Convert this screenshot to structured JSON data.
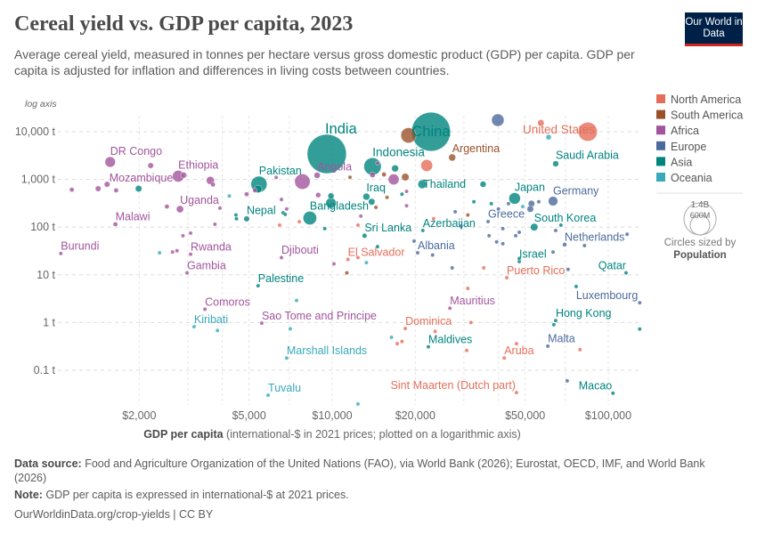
{
  "title": "Cereal yield vs. GDP per capita, 2023",
  "subtitle": "Average cereal yield, measured in tonnes per hectare versus gross domestic product (GDP) per capita. GDP per capita is adjusted for inflation and differences in living costs between countries.",
  "logo": "Our World in Data",
  "footer": {
    "source_label": "Data source:",
    "source_text": " Food and Agriculture Organization of the United Nations (FAO), via World Bank (2026); Eurostat, OECD, IMF, and World Bank (2026)",
    "note_label": "Note:",
    "note_text": " GDP per capita is expressed in international-$ at 2021 prices.",
    "url": "OurWorldinData.org/crop-yields | CC BY"
  },
  "chart_data": {
    "type": "scatter",
    "x_scale": "log",
    "y_scale": "log",
    "xlim": [
      1000,
      130000
    ],
    "ylim": [
      0.019,
      22000
    ],
    "y_axis_note": "log axis",
    "xlabel_bold": "GDP per capita",
    "xlabel_rest": " (international-$ in 2021 prices; plotted on a logarithmic axis)",
    "x_ticks": [
      {
        "v": 2000,
        "label": "$2,000"
      },
      {
        "v": 5000,
        "label": "$5,000"
      },
      {
        "v": 10000,
        "label": "$10,000"
      },
      {
        "v": 20000,
        "label": "$20,000"
      },
      {
        "v": 50000,
        "label": "$50,000"
      },
      {
        "v": 100000,
        "label": "$100,000"
      }
    ],
    "y_ticks": [
      {
        "v": 10000,
        "label": "10,000 t"
      },
      {
        "v": 1000,
        "label": "1,000 t"
      },
      {
        "v": 100,
        "label": "100 t"
      },
      {
        "v": 10,
        "label": "10 t"
      },
      {
        "v": 1,
        "label": "1 t"
      },
      {
        "v": 0.1,
        "label": "0.1 t"
      }
    ],
    "grid": true,
    "legend_placement": "right",
    "legend": [
      {
        "name": "North America",
        "color": "#E56E5A"
      },
      {
        "name": "South America",
        "color": "#9A5129"
      },
      {
        "name": "Africa",
        "color": "#A2559C"
      },
      {
        "name": "Europe",
        "color": "#4C6A9C"
      },
      {
        "name": "Asia",
        "color": "#00847E"
      },
      {
        "name": "Oceania",
        "color": "#38AABA"
      }
    ],
    "size_legend": {
      "title": "Circles sized by",
      "variable": "Population",
      "large": "1.4B",
      "small": "600M"
    },
    "points": [
      {
        "label": "India",
        "gdp": 9560,
        "y": 3420,
        "region": "Asia",
        "pop": 1430
      },
      {
        "label": "China",
        "gdp": 22800,
        "y": 10000,
        "region": "Asia",
        "pop": 1410
      },
      {
        "label": "United States",
        "gdp": 84300,
        "y": 10000,
        "region": "North America",
        "pop": 335
      },
      {
        "label": "Indonesia",
        "gdp": 14000,
        "y": 1870,
        "region": "Asia",
        "pop": 280
      },
      {
        "label": "Pakistan",
        "gdp": 5430,
        "y": 793,
        "region": "Asia",
        "pop": 240
      },
      {
        "label": "Bangladesh",
        "gdp": 8300,
        "y": 155,
        "region": "Asia",
        "pop": 172
      },
      {
        "label": "Argentina",
        "gdp": 27200,
        "y": 2880,
        "region": "South America",
        "pop": 46
      },
      {
        "label": "Saudi Arabia",
        "gdp": 64500,
        "y": 2130,
        "region": "Asia",
        "pop": 33
      },
      {
        "label": "Japan",
        "gdp": 45800,
        "y": 400,
        "region": "Asia",
        "pop": 124
      },
      {
        "label": "Germany",
        "gdp": 63100,
        "y": 351,
        "region": "Europe",
        "pop": 84
      },
      {
        "label": "Thailand",
        "gdp": 21200,
        "y": 793,
        "region": "Asia",
        "pop": 71
      },
      {
        "label": "DR Congo",
        "gdp": 1570,
        "y": 2320,
        "region": "Africa",
        "pop": 102
      },
      {
        "label": "Ethiopia",
        "gdp": 2770,
        "y": 1170,
        "region": "Africa",
        "pop": 126
      },
      {
        "label": "Mozambique",
        "gdp": 2900,
        "y": 1230,
        "region": "Africa",
        "pop": 33
      },
      {
        "label": "Angola",
        "gdp": 8820,
        "y": 1220,
        "region": "Africa",
        "pop": 36
      },
      {
        "label": "Uganda",
        "gdp": 2810,
        "y": 238,
        "region": "Africa",
        "pop": 48
      },
      {
        "label": "Malawi",
        "gdp": 1640,
        "y": 115,
        "region": "Africa",
        "pop": 20
      },
      {
        "label": "Burundi",
        "gdp": 1040,
        "y": 28,
        "region": "Africa",
        "pop": 13
      },
      {
        "label": "Rwanda",
        "gdp": 3070,
        "y": 27,
        "region": "Africa",
        "pop": 14
      },
      {
        "label": "Gambia",
        "gdp": 2980,
        "y": 11,
        "region": "Africa",
        "pop": 3
      },
      {
        "label": "Nepal",
        "gdp": 4900,
        "y": 149,
        "region": "Asia",
        "pop": 30
      },
      {
        "label": "Djibouti",
        "gdp": 6550,
        "y": 23,
        "region": "Africa",
        "pop": 1
      },
      {
        "label": "Palestine",
        "gdp": 5390,
        "y": 5.9,
        "region": "Asia",
        "pop": 5
      },
      {
        "label": "Comoros",
        "gdp": 3460,
        "y": 1.9,
        "region": "Africa",
        "pop": 1
      },
      {
        "label": "Kiribati",
        "gdp": 3160,
        "y": 0.82,
        "region": "Oceania",
        "pop": 0.1
      },
      {
        "label": "Sao Tome and Principe",
        "gdp": 5560,
        "y": 0.97,
        "region": "Africa",
        "pop": 0.2
      },
      {
        "label": "Marshall Islands",
        "gdp": 6840,
        "y": 0.18,
        "region": "Oceania",
        "pop": 0.04
      },
      {
        "label": "Tuvalu",
        "gdp": 5860,
        "y": 0.03,
        "region": "Oceania",
        "pop": 0.01
      },
      {
        "label": "El Salvador",
        "gdp": 11400,
        "y": 21,
        "region": "North America",
        "pop": 6
      },
      {
        "label": "Iraq",
        "gdp": 13300,
        "y": 435,
        "region": "Asia",
        "pop": 45
      },
      {
        "label": "Sri Lanka",
        "gdp": 13100,
        "y": 66,
        "region": "Asia",
        "pop": 22
      },
      {
        "label": "Azerbaijan",
        "gdp": 21300,
        "y": 85,
        "region": "Asia",
        "pop": 10
      },
      {
        "label": "Albania",
        "gdp": 20400,
        "y": 29,
        "region": "Europe",
        "pop": 3
      },
      {
        "label": "Greece",
        "gdp": 36700,
        "y": 131,
        "region": "Europe",
        "pop": 10
      },
      {
        "label": "South Korea",
        "gdp": 53900,
        "y": 100,
        "region": "Asia",
        "pop": 52
      },
      {
        "label": "Netherlands",
        "gdp": 69500,
        "y": 43,
        "region": "Europe",
        "pop": 18
      },
      {
        "label": "Israel",
        "gdp": 47600,
        "y": 19,
        "region": "Asia",
        "pop": 10
      },
      {
        "label": "Puerto Rico",
        "gdp": 42900,
        "y": 8.7,
        "region": "North America",
        "pop": 3
      },
      {
        "label": "Qatar",
        "gdp": 116000,
        "y": 11,
        "region": "Asia",
        "pop": 3
      },
      {
        "label": "Luxembourg",
        "gdp": 130000,
        "y": 2.6,
        "region": "Europe",
        "pop": 0.7
      },
      {
        "label": "Hong Kong",
        "gdp": 64500,
        "y": 1.1,
        "region": "Asia",
        "pop": 7
      },
      {
        "label": "Mauritius",
        "gdp": 26700,
        "y": 2.0,
        "region": "Africa",
        "pop": 1.3
      },
      {
        "label": "Dominica",
        "gdp": 18400,
        "y": 0.75,
        "region": "North America",
        "pop": 0.07
      },
      {
        "label": "Maldives",
        "gdp": 22300,
        "y": 0.31,
        "region": "Asia",
        "pop": 0.5
      },
      {
        "label": "Malta",
        "gdp": 60400,
        "y": 0.32,
        "region": "Europe",
        "pop": 0.5
      },
      {
        "label": "Aruba",
        "gdp": 42000,
        "y": 0.18,
        "region": "North America",
        "pop": 0.1
      },
      {
        "label": "Sint Maarten (Dutch part)",
        "gdp": 46500,
        "y": 0.034,
        "region": "North America",
        "pop": 0.04
      },
      {
        "label": "Macao",
        "gdp": 104000,
        "y": 0.033,
        "region": "Asia",
        "pop": 0.7
      },
      {
        "gdp": 18900,
        "y": 8400,
        "region": "South America",
        "pop": 215
      },
      {
        "gdp": 39800,
        "y": 17500,
        "region": "Europe",
        "pop": 145
      },
      {
        "gdp": 57000,
        "y": 15300,
        "region": "North America",
        "pop": 40
      },
      {
        "gdp": 22000,
        "y": 1960,
        "region": "North America",
        "pop": 130
      },
      {
        "gdp": 60800,
        "y": 7700,
        "region": "Oceania",
        "pop": 27
      },
      {
        "gdp": 7800,
        "y": 900,
        "region": "Africa",
        "pop": 220
      },
      {
        "gdp": 16700,
        "y": 1000,
        "region": "Africa",
        "pop": 110
      },
      {
        "gdp": 1140,
        "y": 610,
        "region": "Africa",
        "pop": 20
      },
      {
        "gdp": 1420,
        "y": 640,
        "region": "Africa",
        "pop": 30
      },
      {
        "gdp": 1530,
        "y": 790,
        "region": "Africa",
        "pop": 30
      },
      {
        "gdp": 1650,
        "y": 590,
        "region": "Africa",
        "pop": 20
      },
      {
        "gdp": 2200,
        "y": 1950,
        "region": "Africa",
        "pop": 30
      },
      {
        "gdp": 3620,
        "y": 950,
        "region": "Africa",
        "pop": 60
      },
      {
        "gdp": 3700,
        "y": 780,
        "region": "Africa",
        "pop": 20
      },
      {
        "gdp": 2520,
        "y": 270,
        "region": "Africa",
        "pop": 20
      },
      {
        "gdp": 3920,
        "y": 250,
        "region": "Africa",
        "pop": 12
      },
      {
        "gdp": 3760,
        "y": 115,
        "region": "Africa",
        "pop": 8
      },
      {
        "gdp": 2880,
        "y": 66,
        "region": "Africa",
        "pop": 8
      },
      {
        "gdp": 3070,
        "y": 75,
        "region": "Africa",
        "pop": 8
      },
      {
        "gdp": 2640,
        "y": 30,
        "region": "Africa",
        "pop": 6
      },
      {
        "gdp": 2740,
        "y": 32,
        "region": "Africa",
        "pop": 6
      },
      {
        "gdp": 4900,
        "y": 490,
        "region": "Africa",
        "pop": 20
      },
      {
        "gdp": 5250,
        "y": 590,
        "region": "Africa",
        "pop": 20
      },
      {
        "gdp": 6270,
        "y": 1100,
        "region": "Africa",
        "pop": 6
      },
      {
        "gdp": 6550,
        "y": 380,
        "region": "Africa",
        "pop": 15
      },
      {
        "gdp": 6840,
        "y": 240,
        "region": "Africa",
        "pop": 12
      },
      {
        "gdp": 8900,
        "y": 470,
        "region": "Africa",
        "pop": 25
      },
      {
        "gdp": 10150,
        "y": 17,
        "region": "Africa",
        "pop": 3
      },
      {
        "gdp": 12700,
        "y": 170,
        "region": "Africa",
        "pop": 8
      },
      {
        "gdp": 14000,
        "y": 1250,
        "region": "Africa",
        "pop": 30
      },
      {
        "gdp": 14600,
        "y": 2200,
        "region": "Africa",
        "pop": 10
      },
      {
        "gdp": 18600,
        "y": 560,
        "region": "Africa",
        "pop": 4
      },
      {
        "gdp": 18600,
        "y": 280,
        "region": "Africa",
        "pop": 4
      },
      {
        "gdp": 1990,
        "y": 640,
        "region": "Asia",
        "pop": 40
      },
      {
        "gdp": 4480,
        "y": 180,
        "region": "Asia",
        "pop": 8
      },
      {
        "gdp": 4500,
        "y": 150,
        "region": "Asia",
        "pop": 8
      },
      {
        "gdp": 5390,
        "y": 630,
        "region": "Asia",
        "pop": 55
      },
      {
        "gdp": 6640,
        "y": 200,
        "region": "Asia",
        "pop": 10
      },
      {
        "gdp": 6760,
        "y": 185,
        "region": "Asia",
        "pop": 10
      },
      {
        "gdp": 9400,
        "y": 93,
        "region": "Asia",
        "pop": 5
      },
      {
        "gdp": 9900,
        "y": 450,
        "region": "Asia",
        "pop": 35
      },
      {
        "gdp": 9900,
        "y": 320,
        "region": "Asia",
        "pop": 100
      },
      {
        "gdp": 14600,
        "y": 39,
        "region": "Asia",
        "pop": 5
      },
      {
        "gdp": 13900,
        "y": 340,
        "region": "Asia",
        "pop": 40
      },
      {
        "gdp": 16900,
        "y": 1700,
        "region": "Asia",
        "pop": 45
      },
      {
        "gdp": 17900,
        "y": 490,
        "region": "Asia",
        "pop": 5
      },
      {
        "gdp": 35200,
        "y": 790,
        "region": "Asia",
        "pop": 35
      },
      {
        "gdp": 32600,
        "y": 340,
        "region": "Asia",
        "pop": 10
      },
      {
        "gdp": 37700,
        "y": 310,
        "region": "Asia",
        "pop": 5
      },
      {
        "gdp": 67400,
        "y": 110,
        "region": "Asia",
        "pop": 5
      },
      {
        "gdp": 47600,
        "y": 22,
        "region": "Asia",
        "pop": 5
      },
      {
        "gdp": 63500,
        "y": 0.9,
        "region": "Asia",
        "pop": 5
      },
      {
        "gdp": 130000,
        "y": 0.73,
        "region": "Asia",
        "pop": 1
      },
      {
        "gdp": 76500,
        "y": 5.7,
        "region": "Asia",
        "pop": 3
      },
      {
        "gdp": 40000,
        "y": 240,
        "region": "Europe",
        "pop": 10
      },
      {
        "gdp": 43500,
        "y": 310,
        "region": "Europe",
        "pop": 10
      },
      {
        "gdp": 52700,
        "y": 310,
        "region": "Europe",
        "pop": 40
      },
      {
        "gdp": 52200,
        "y": 240,
        "region": "Europe",
        "pop": 40
      },
      {
        "gdp": 56000,
        "y": 340,
        "region": "Europe",
        "pop": 5
      },
      {
        "gdp": 27900,
        "y": 210,
        "region": "Europe",
        "pop": 10
      },
      {
        "gdp": 29300,
        "y": 105,
        "region": "Europe",
        "pop": 5
      },
      {
        "gdp": 41500,
        "y": 93,
        "region": "Europe",
        "pop": 5
      },
      {
        "gdp": 46200,
        "y": 66,
        "region": "Europe",
        "pop": 5
      },
      {
        "gdp": 47600,
        "y": 78,
        "region": "Europe",
        "pop": 5
      },
      {
        "gdp": 39400,
        "y": 49,
        "region": "Europe",
        "pop": 5
      },
      {
        "gdp": 41500,
        "y": 45,
        "region": "Europe",
        "pop": 5
      },
      {
        "gdp": 37000,
        "y": 66,
        "region": "Europe",
        "pop": 5
      },
      {
        "gdp": 27200,
        "y": 14,
        "region": "Europe",
        "pop": 4
      },
      {
        "gdp": 64500,
        "y": 85,
        "region": "Europe",
        "pop": 5
      },
      {
        "gdp": 82000,
        "y": 41,
        "region": "Europe",
        "pop": 5
      },
      {
        "gdp": 117000,
        "y": 71,
        "region": "Europe",
        "pop": 1
      },
      {
        "gdp": 71500,
        "y": 13,
        "region": "Europe",
        "pop": 3
      },
      {
        "gdp": 63100,
        "y": 30,
        "region": "Europe",
        "pop": 5
      },
      {
        "gdp": 23100,
        "y": 26,
        "region": "Europe",
        "pop": 4
      },
      {
        "gdp": 19800,
        "y": 51,
        "region": "Europe",
        "pop": 3
      },
      {
        "gdp": 71000,
        "y": 0.06,
        "region": "Europe",
        "pop": 1
      },
      {
        "gdp": 35400,
        "y": 14,
        "region": "North America",
        "pop": 3
      },
      {
        "gdp": 31000,
        "y": 5.2,
        "region": "North America",
        "pop": 2
      },
      {
        "gdp": 31800,
        "y": 1.0,
        "region": "North America",
        "pop": 2
      },
      {
        "gdp": 23600,
        "y": 0.65,
        "region": "North America",
        "pop": 1
      },
      {
        "gdp": 17200,
        "y": 0.36,
        "region": "North America",
        "pop": 1
      },
      {
        "gdp": 17900,
        "y": 0.4,
        "region": "North America",
        "pop": 1
      },
      {
        "gdp": 30700,
        "y": 0.26,
        "region": "North America",
        "pop": 1
      },
      {
        "gdp": 46500,
        "y": 0.36,
        "region": "North America",
        "pop": 1
      },
      {
        "gdp": 79000,
        "y": 0.27,
        "region": "North America",
        "pop": 1
      },
      {
        "gdp": 7600,
        "y": 130,
        "region": "North America",
        "pop": 10
      },
      {
        "gdp": 6450,
        "y": 110,
        "region": "North America",
        "pop": 10
      },
      {
        "gdp": 12400,
        "y": 110,
        "region": "North America",
        "pop": 5
      },
      {
        "gdp": 12400,
        "y": 23,
        "region": "North America",
        "pop": 5
      },
      {
        "gdp": 23300,
        "y": 150,
        "region": "North America",
        "pop": 5
      },
      {
        "gdp": 15400,
        "y": 1270,
        "region": "South America",
        "pop": 20
      },
      {
        "gdp": 18400,
        "y": 1120,
        "region": "South America",
        "pop": 52
      },
      {
        "gdp": 11600,
        "y": 1110,
        "region": "South America",
        "pop": 10
      },
      {
        "gdp": 15800,
        "y": 420,
        "region": "South America",
        "pop": 10
      },
      {
        "gdp": 14400,
        "y": 260,
        "region": "South America",
        "pop": 10
      },
      {
        "gdp": 31000,
        "y": 180,
        "region": "South America",
        "pop": 5
      },
      {
        "gdp": 11300,
        "y": 11,
        "region": "South America",
        "pop": 6
      },
      {
        "gdp": 49000,
        "y": 270,
        "region": "Oceania",
        "pop": 5
      },
      {
        "gdp": 4240,
        "y": 450,
        "region": "Oceania",
        "pop": 10
      },
      {
        "gdp": 2370,
        "y": 29,
        "region": "Oceania",
        "pop": 1
      },
      {
        "gdp": 13300,
        "y": 18,
        "region": "Oceania",
        "pop": 1
      },
      {
        "gdp": 7430,
        "y": 2.9,
        "region": "Oceania",
        "pop": 1
      },
      {
        "gdp": 7050,
        "y": 0.74,
        "region": "Oceania",
        "pop": 1
      },
      {
        "gdp": 3840,
        "y": 0.68,
        "region": "Oceania",
        "pop": 1
      },
      {
        "gdp": 12400,
        "y": 0.0196,
        "region": "Oceania",
        "pop": 1
      },
      {
        "gdp": 16400,
        "y": 0.49,
        "region": "Oceania",
        "pop": 1
      }
    ]
  }
}
